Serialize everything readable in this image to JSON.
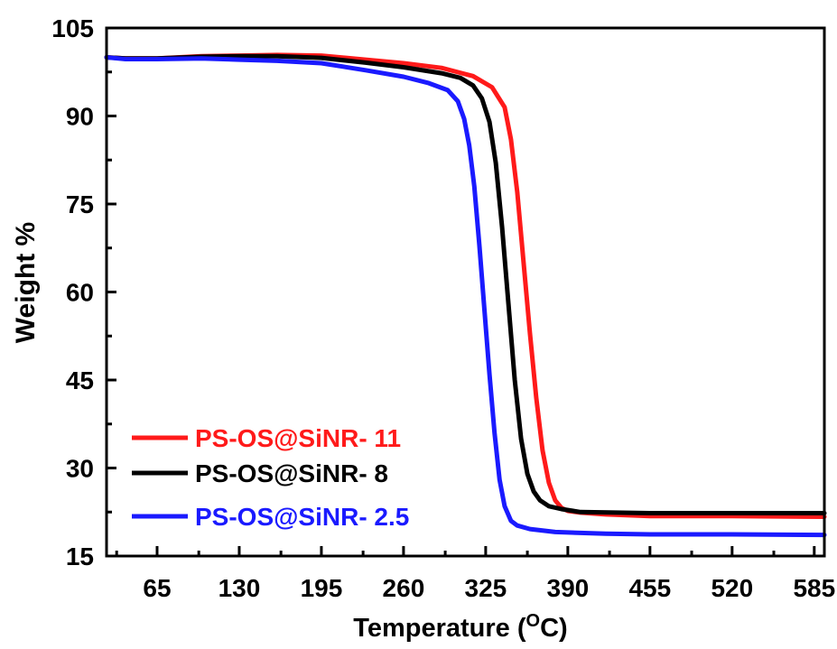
{
  "chart_data": {
    "type": "line",
    "xlabel": "Temperature (",
    "xlabel_unit_sup": "O",
    "xlabel_unit_tail": "C)",
    "ylabel": "Weight %",
    "xlim": [
      25,
      593
    ],
    "ylim": [
      15,
      105
    ],
    "xticks": [
      65,
      130,
      195,
      260,
      325,
      390,
      455,
      520,
      585
    ],
    "yticks": [
      15,
      30,
      45,
      60,
      75,
      90,
      105
    ],
    "xticks_minor": [
      33,
      98,
      163,
      228,
      293,
      358,
      423,
      488,
      553
    ],
    "yticks_minor": [
      22.5,
      37.5,
      52.5,
      67.5,
      82.5,
      97.5
    ],
    "grid": false,
    "legend_position": "bottom-left",
    "series": [
      {
        "name": "PS-OS@SiNR- 11",
        "color": "#ff1a1a",
        "x": [
          25,
          40,
          65,
          100,
          130,
          160,
          195,
          230,
          260,
          290,
          315,
          330,
          340,
          345,
          350,
          355,
          360,
          365,
          370,
          375,
          380,
          385,
          390,
          400,
          420,
          455,
          520,
          593
        ],
        "y": [
          100,
          99.8,
          99.8,
          100.2,
          100.3,
          100.4,
          100.3,
          99.6,
          99,
          98.2,
          96.8,
          94.9,
          91.5,
          86,
          77,
          65,
          53,
          42,
          33,
          27.5,
          24.5,
          23.2,
          22.7,
          22.4,
          22.1,
          21.8,
          21.8,
          21.7
        ]
      },
      {
        "name": "PS-OS@SiNR- 8",
        "color": "#000000",
        "x": [
          25,
          40,
          65,
          100,
          130,
          160,
          195,
          230,
          260,
          290,
          305,
          315,
          322,
          328,
          333,
          338,
          343,
          348,
          353,
          358,
          363,
          368,
          375,
          385,
          400,
          455,
          520,
          593
        ],
        "y": [
          100,
          99.8,
          99.8,
          100.1,
          100.2,
          100.2,
          99.9,
          99.1,
          98.3,
          97.3,
          96.5,
          95.2,
          93,
          89,
          82,
          71,
          58,
          45,
          35,
          29,
          26,
          24.5,
          23.5,
          23,
          22.5,
          22.3,
          22.3,
          22.3
        ]
      },
      {
        "name": "PS-OS@SiNR- 2.5",
        "color": "#1a1aff",
        "x": [
          25,
          40,
          65,
          100,
          130,
          160,
          195,
          230,
          260,
          280,
          295,
          303,
          308,
          312,
          316,
          320,
          324,
          328,
          332,
          336,
          340,
          345,
          350,
          360,
          380,
          420,
          455,
          520,
          593
        ],
        "y": [
          100,
          99.7,
          99.7,
          99.8,
          99.6,
          99.4,
          99,
          97.8,
          96.7,
          95.6,
          94.4,
          92.5,
          89.5,
          85,
          78,
          68,
          57,
          46,
          36,
          28,
          23.5,
          21,
          20.2,
          19.6,
          19.1,
          18.8,
          18.7,
          18.7,
          18.6
        ]
      }
    ]
  }
}
